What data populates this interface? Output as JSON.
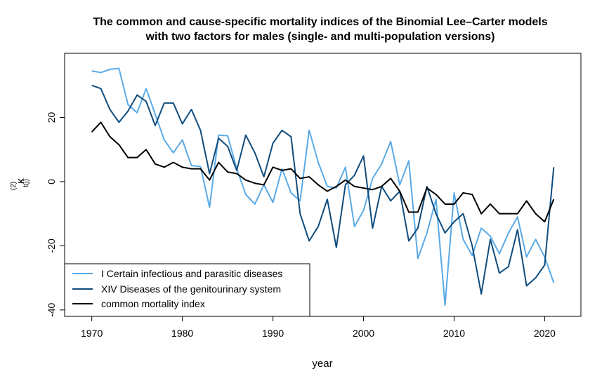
{
  "chart_data": {
    "type": "line",
    "title_line1": "The common and cause-specific mortality indices of the Binomial Lee–Carter models",
    "title_line2": "with two factors for males (single- and multi-population versions)",
    "xlabel": "year",
    "ylabel_main": "κ",
    "ylabel_sup": "(2)",
    "ylabel_sub": "t(j)",
    "xlim": [
      1967,
      2024
    ],
    "ylim": [
      -42,
      40
    ],
    "x_ticks": [
      1970,
      1980,
      1990,
      2000,
      2010,
      2020
    ],
    "y_ticks": [
      -40,
      -20,
      0,
      20
    ],
    "legend_position": "bottom-left",
    "grid": false,
    "x": [
      1970,
      1971,
      1972,
      1973,
      1974,
      1975,
      1976,
      1977,
      1978,
      1979,
      1980,
      1981,
      1982,
      1983,
      1984,
      1985,
      1986,
      1987,
      1988,
      1989,
      1990,
      1991,
      1992,
      1993,
      1994,
      1995,
      1996,
      1997,
      1998,
      1999,
      2000,
      2001,
      2002,
      2003,
      2004,
      2005,
      2006,
      2007,
      2008,
      2009,
      2010,
      2011,
      2012,
      2013,
      2014,
      2015,
      2016,
      2017,
      2018,
      2019,
      2020,
      2021
    ],
    "series": [
      {
        "name": "I Certain infectious and parasitic diseases",
        "color": "#5aaae6",
        "values": [
          34.5,
          34,
          35,
          35.3,
          24,
          21.5,
          29,
          21,
          13,
          9,
          13,
          5,
          4.7,
          -8,
          14.5,
          14.3,
          4,
          -4,
          -7,
          -1,
          -6.5,
          4,
          -3.5,
          -6,
          16,
          6,
          -1.5,
          -2,
          4.5,
          -14,
          -9,
          1,
          5.5,
          12.5,
          -1,
          6.5,
          -24,
          -16,
          -5.5,
          -38.5,
          -3.5,
          -18,
          -23,
          -14.5,
          -17,
          -22.5,
          -16,
          -11,
          -23.5,
          -18,
          -23.5,
          -31.5
        ]
      },
      {
        "name": "XIV Diseases of the genitourinary system",
        "color": "#0f4c7d",
        "values": [
          30,
          29,
          22.5,
          18.5,
          22,
          27,
          25,
          17.5,
          24.5,
          24.5,
          18,
          22.5,
          16,
          2.5,
          13.5,
          11,
          3.5,
          14.5,
          9,
          1.5,
          12,
          16,
          14,
          -10,
          -18.5,
          -14,
          -5.5,
          -20.5,
          -1,
          2,
          8,
          -14.5,
          -1.5,
          -6,
          -3,
          -18.5,
          -14.5,
          -1.5,
          -10,
          -16,
          -12.5,
          -10,
          -20,
          -35,
          -18,
          -28.5,
          -26.5,
          -15,
          -32.5,
          -30,
          -26,
          4.5
        ]
      },
      {
        "name": "common mortality index",
        "color": "#000000",
        "values": [
          15.5,
          18.5,
          14,
          11.5,
          7.5,
          7.5,
          10,
          5.5,
          4.5,
          6,
          4.5,
          4,
          4,
          0.5,
          6,
          3,
          2.5,
          0.5,
          -0.5,
          -1,
          4.5,
          3.5,
          4,
          1,
          1.5,
          -1,
          -3,
          -1.5,
          0.5,
          -1.5,
          -2,
          -2.5,
          -1.5,
          1,
          -3,
          -9.5,
          -9.5,
          -2,
          -4,
          -7,
          -7,
          -3.5,
          -4,
          -10,
          -7,
          -10,
          -10,
          -10,
          -6,
          -10,
          -12.5,
          -5.5
        ]
      }
    ]
  }
}
